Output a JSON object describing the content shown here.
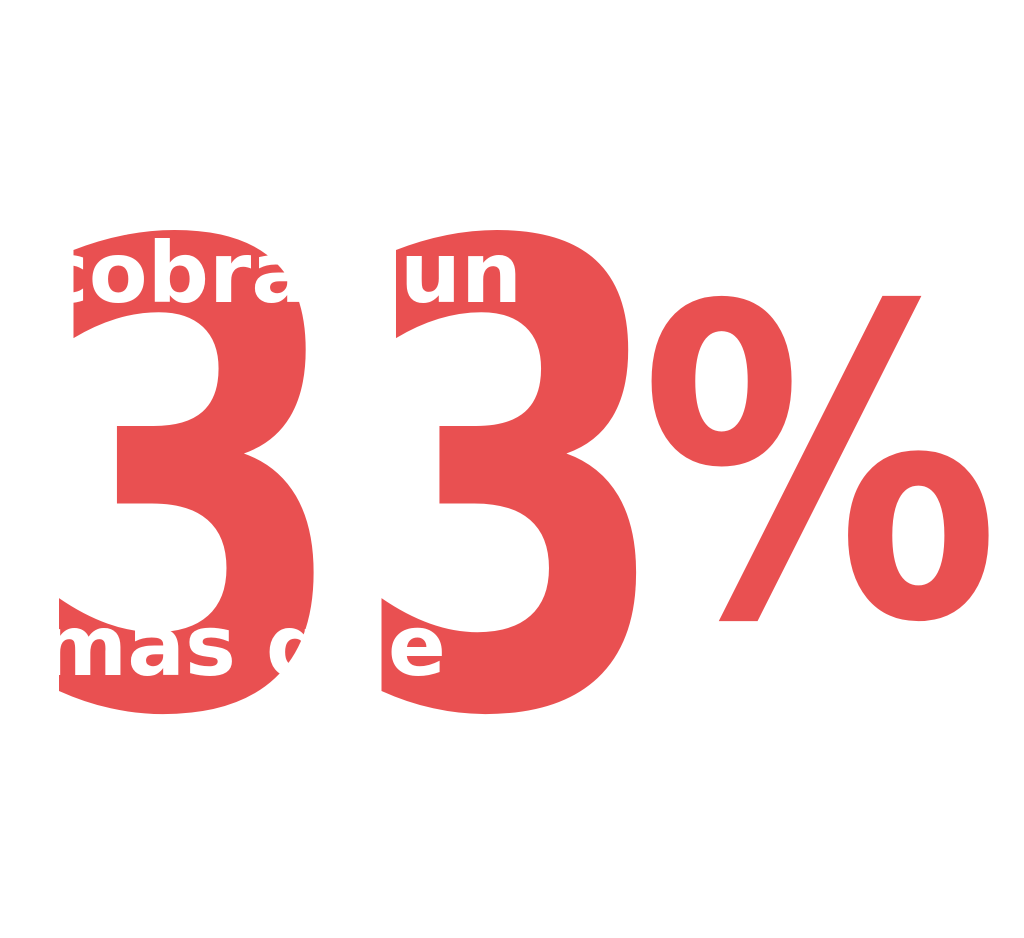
{
  "figure": "33",
  "symbol": "%",
  "line_top": "cobran un",
  "line_bottom": "más que"
}
